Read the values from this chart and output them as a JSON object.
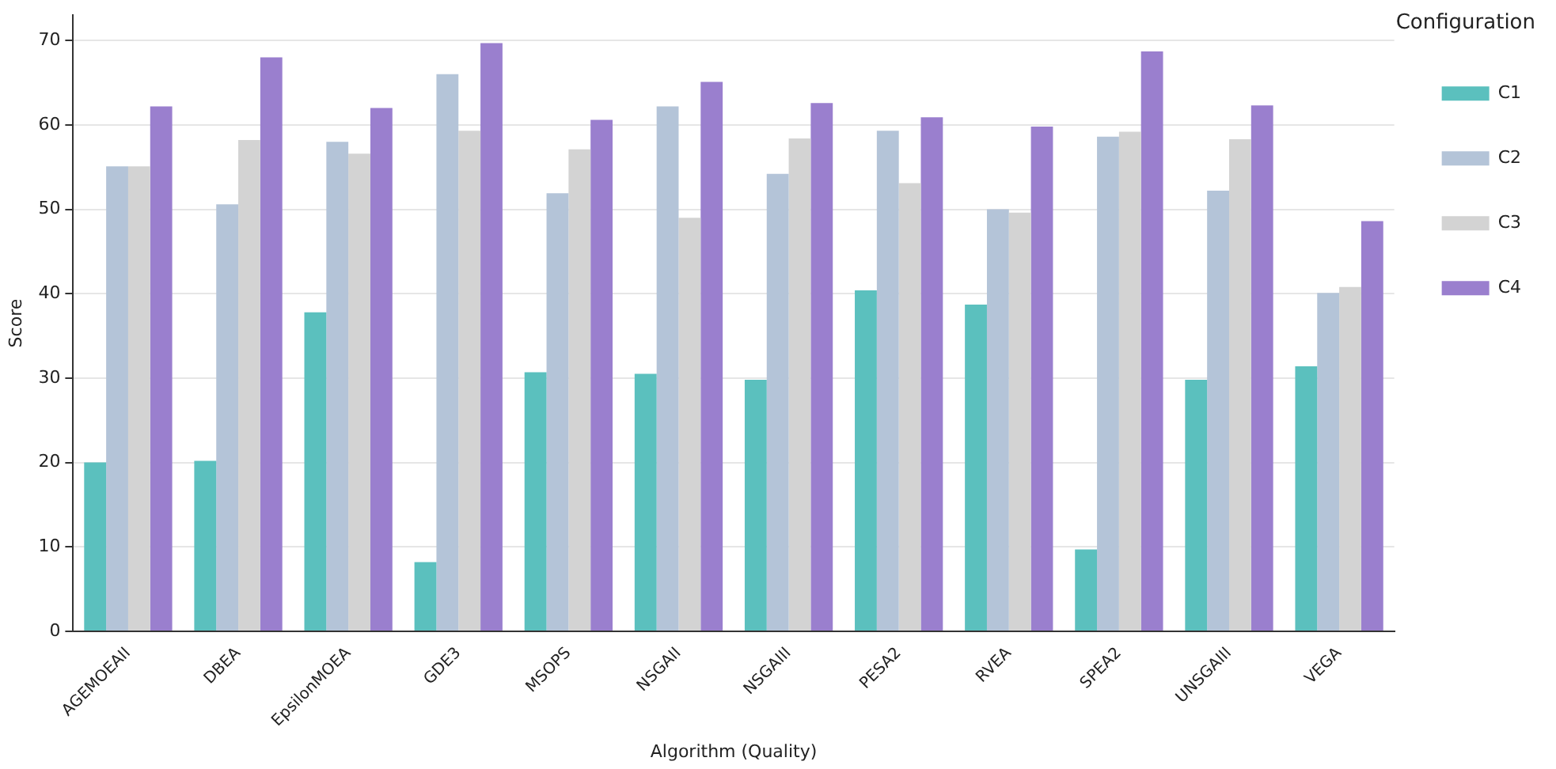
{
  "chart_data": {
    "type": "bar",
    "xlabel": "Algorithm (Quality)",
    "ylabel": "Score",
    "legend_title": "Configuration",
    "categories": [
      "AGEMOEAII",
      "DBEA",
      "EpsilonMOEA",
      "GDE3",
      "MSOPS",
      "NSGAII",
      "NSGAIII",
      "PESA2",
      "RVEA",
      "SPEA2",
      "UNSGAIII",
      "VEGA"
    ],
    "series": [
      {
        "name": "C1",
        "color": "#5bc0be",
        "values": [
          20,
          20.2,
          37.8,
          8.2,
          30.7,
          30.5,
          29.8,
          40.4,
          38.7,
          9.7,
          29.8,
          31.4
        ]
      },
      {
        "name": "C2",
        "color": "#b4c4d8",
        "values": [
          55.1,
          50.6,
          58,
          66,
          51.9,
          62.2,
          54.2,
          59.3,
          50,
          58.6,
          52.2,
          40.1
        ]
      },
      {
        "name": "C3",
        "color": "#d3d3d3",
        "values": [
          55.1,
          58.2,
          56.6,
          59.3,
          57.1,
          49,
          58.4,
          53.1,
          49.6,
          59.2,
          58.3,
          40.8
        ]
      },
      {
        "name": "C4",
        "color": "#9a7fce",
        "values": [
          62.2,
          68,
          62,
          69.7,
          60.6,
          65.1,
          62.6,
          60.9,
          59.8,
          68.7,
          62.3,
          48.6
        ]
      }
    ],
    "ylim": [
      0,
      73
    ],
    "yticks": [
      0,
      10,
      20,
      30,
      40,
      50,
      60,
      70
    ],
    "grid": "y",
    "legend": "top right"
  }
}
